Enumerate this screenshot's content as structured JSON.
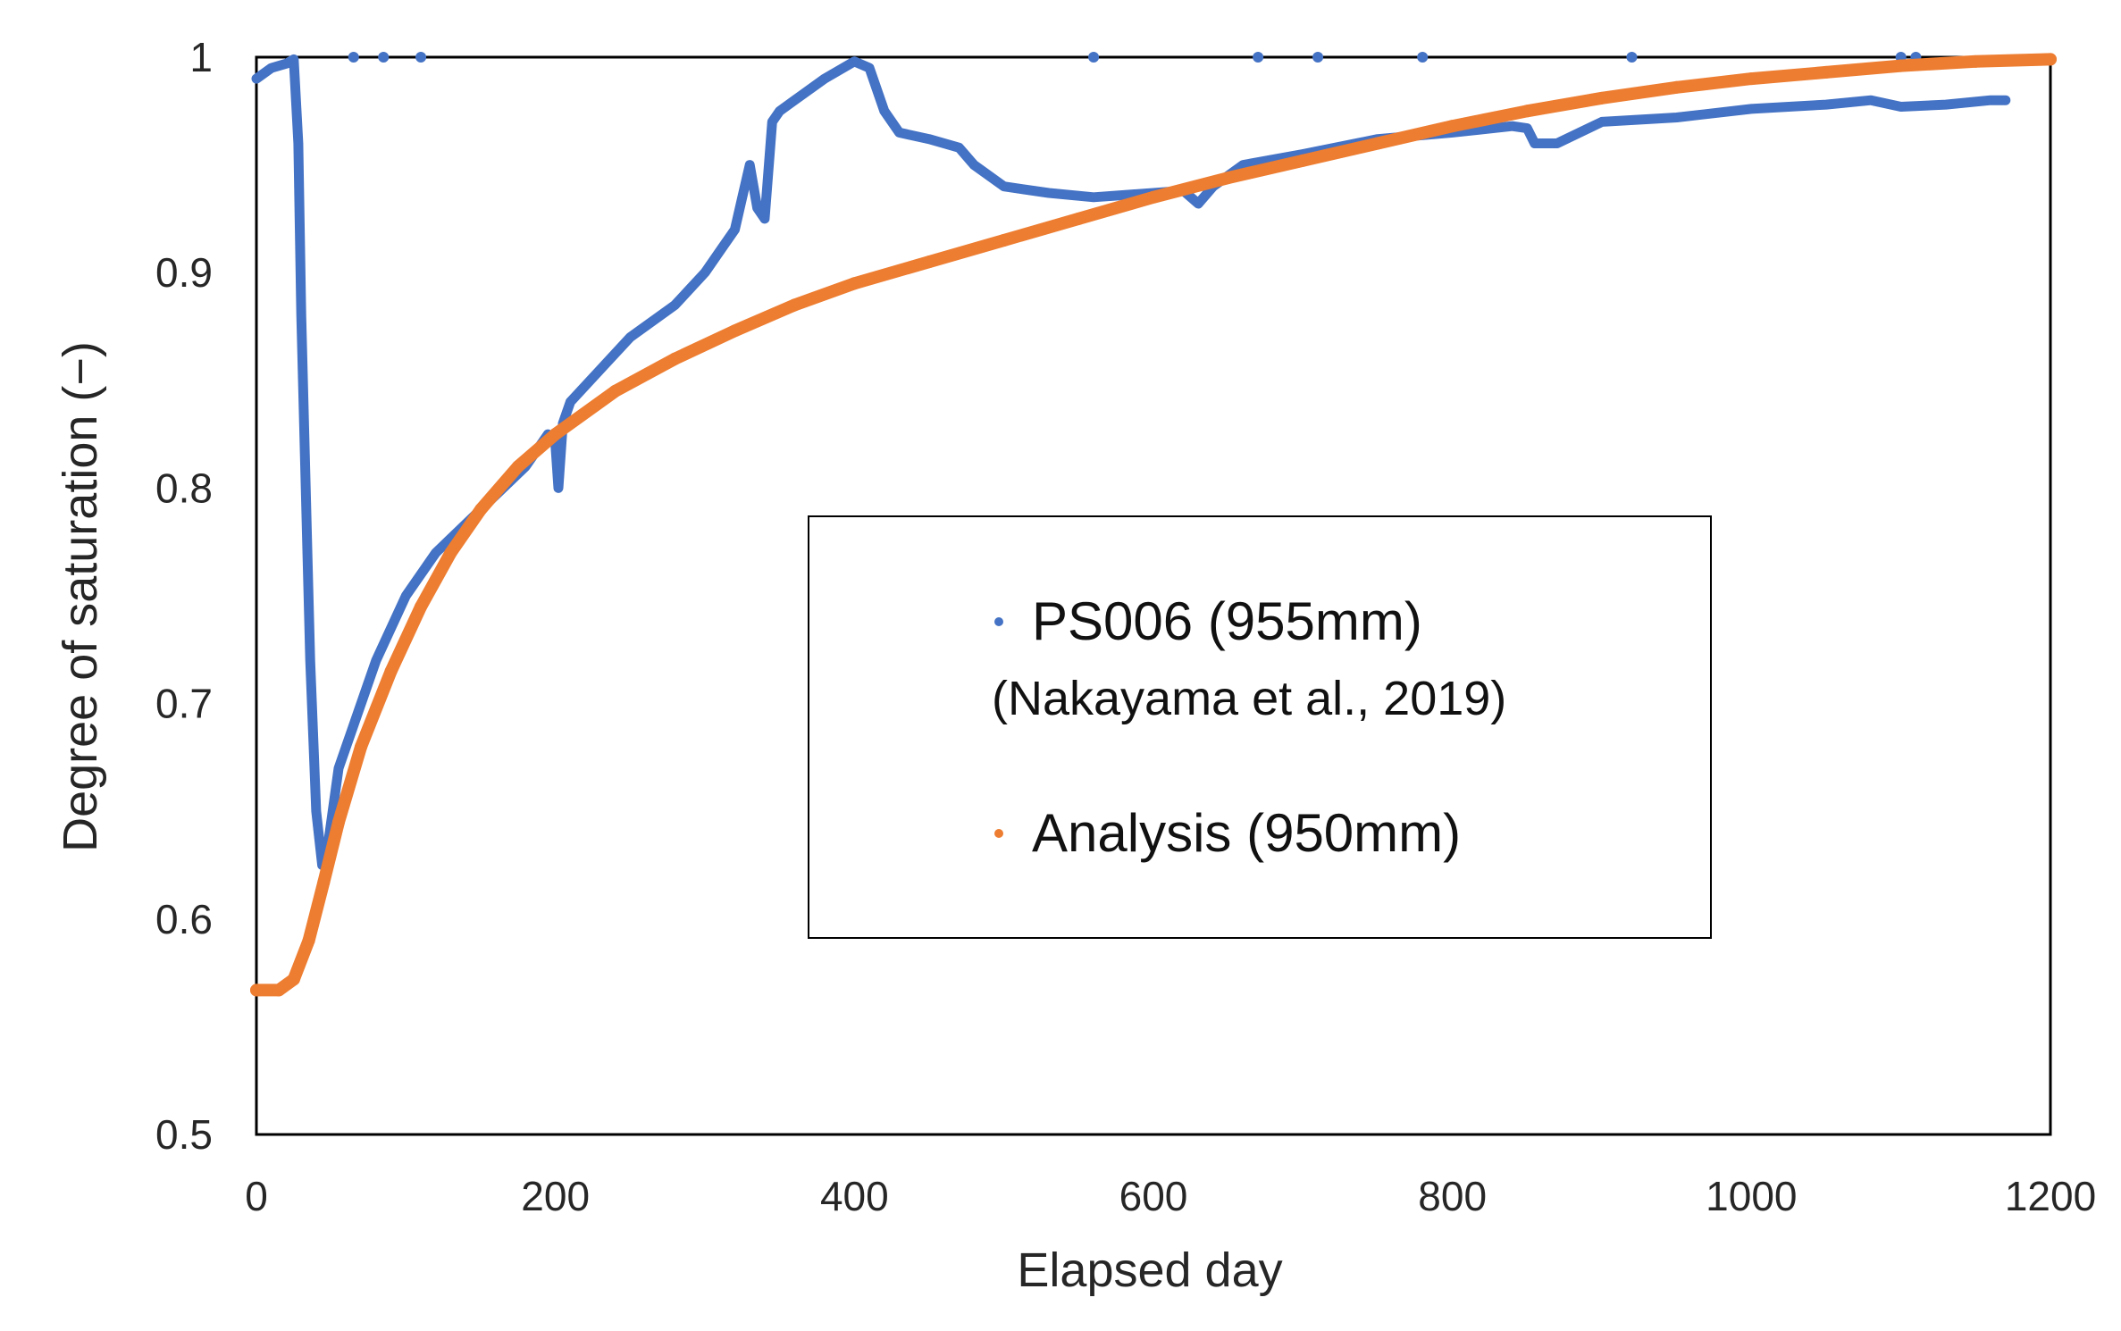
{
  "chart_data": {
    "type": "scatter",
    "title": "",
    "xlabel": "Elapsed day",
    "ylabel": "Degree of saturation (−)",
    "xlim": [
      0,
      1200
    ],
    "ylim": [
      0.5,
      1.0
    ],
    "xticks": [
      "0",
      "200",
      "400",
      "600",
      "800",
      "1000",
      "1200"
    ],
    "yticks": [
      "0.5",
      "0.6",
      "0.7",
      "0.8",
      "0.9",
      "1"
    ],
    "grid": false,
    "legend_position": "center-right",
    "legend": [
      {
        "label": "PS006 (955mm)",
        "sublabel": "(Nakayama et al., 2019)",
        "color": "#4472C4"
      },
      {
        "label": "Analysis (950mm)",
        "color": "#ED7D31"
      }
    ],
    "series": [
      {
        "name": "PS006 (955mm)",
        "color": "#4472C4",
        "x": [
          0,
          10,
          20,
          25,
          28,
          30,
          33,
          36,
          40,
          44,
          48,
          55,
          65,
          80,
          100,
          120,
          150,
          180,
          195,
          200,
          202,
          205,
          210,
          230,
          250,
          280,
          300,
          310,
          320,
          325,
          330,
          335,
          340,
          345,
          350,
          360,
          380,
          400,
          410,
          420,
          430,
          450,
          470,
          480,
          500,
          530,
          560,
          600,
          620,
          630,
          640,
          660,
          700,
          750,
          800,
          840,
          850,
          855,
          870,
          900,
          950,
          1000,
          1050,
          1080,
          1100,
          1130,
          1160,
          1170
        ],
        "y": [
          0.99,
          0.995,
          0.997,
          0.999,
          0.96,
          0.88,
          0.8,
          0.72,
          0.65,
          0.625,
          0.635,
          0.67,
          0.69,
          0.72,
          0.75,
          0.77,
          0.79,
          0.81,
          0.825,
          0.82,
          0.8,
          0.83,
          0.84,
          0.855,
          0.87,
          0.885,
          0.9,
          0.91,
          0.92,
          0.935,
          0.95,
          0.93,
          0.925,
          0.97,
          0.975,
          0.98,
          0.99,
          0.998,
          0.995,
          0.975,
          0.965,
          0.962,
          0.958,
          0.95,
          0.94,
          0.937,
          0.935,
          0.937,
          0.938,
          0.932,
          0.94,
          0.95,
          0.955,
          0.962,
          0.965,
          0.968,
          0.967,
          0.96,
          0.96,
          0.97,
          0.972,
          0.976,
          0.978,
          0.98,
          0.977,
          0.978,
          0.98,
          0.98
        ],
        "outliers_x": [
          65,
          85,
          110,
          560,
          670,
          710,
          780,
          920,
          1100,
          1110
        ],
        "outliers_y": [
          1,
          1,
          1,
          1,
          1,
          1,
          1,
          1,
          1,
          1
        ]
      },
      {
        "name": "Analysis (950mm)",
        "color": "#ED7D31",
        "x": [
          0,
          15,
          25,
          35,
          45,
          55,
          70,
          90,
          110,
          130,
          150,
          175,
          200,
          240,
          280,
          320,
          360,
          400,
          450,
          500,
          550,
          600,
          650,
          700,
          750,
          800,
          850,
          900,
          950,
          1000,
          1050,
          1100,
          1150,
          1200
        ],
        "y": [
          0.567,
          0.567,
          0.572,
          0.59,
          0.617,
          0.645,
          0.68,
          0.715,
          0.745,
          0.77,
          0.79,
          0.81,
          0.825,
          0.845,
          0.86,
          0.873,
          0.885,
          0.895,
          0.905,
          0.915,
          0.925,
          0.935,
          0.944,
          0.952,
          0.96,
          0.968,
          0.975,
          0.981,
          0.986,
          0.99,
          0.993,
          0.996,
          0.998,
          0.999
        ]
      }
    ]
  }
}
